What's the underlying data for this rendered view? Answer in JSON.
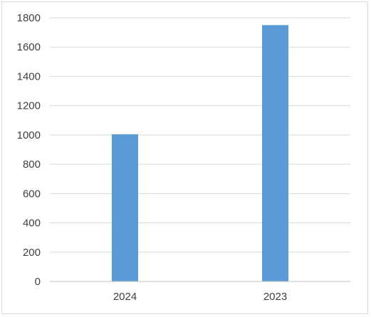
{
  "chart_data": {
    "type": "bar",
    "title": "",
    "xlabel": "",
    "ylabel": "",
    "categories": [
      "2024",
      "2023"
    ],
    "values": [
      1005,
      1750
    ],
    "ylim": [
      0,
      1800
    ],
    "yticks": [
      0,
      200,
      400,
      600,
      800,
      1000,
      1200,
      1400,
      1600,
      1800
    ],
    "grid": true,
    "legend": "none",
    "colors": {
      "bar": "#5b9bd5",
      "grid": "#d9d9d9",
      "axis": "#bfbfbf",
      "text": "#404040"
    }
  }
}
